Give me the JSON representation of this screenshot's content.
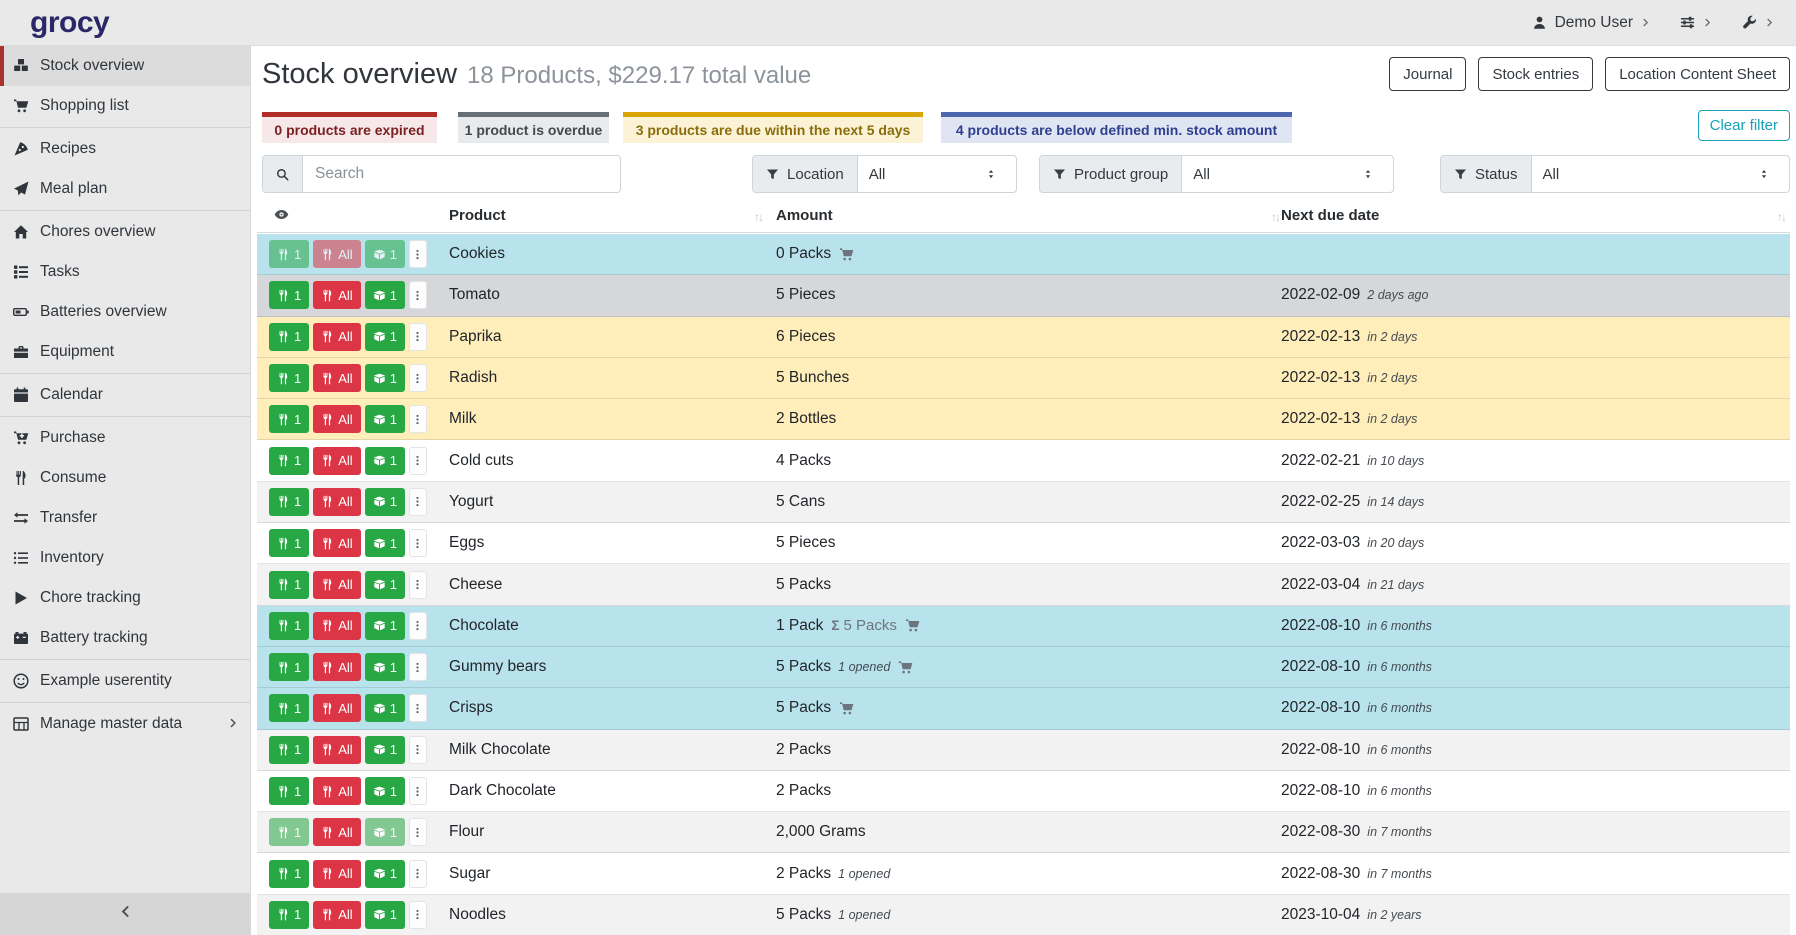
{
  "navbar": {
    "logo": "grocy",
    "user_label": "Demo User"
  },
  "sidebar": {
    "groups": [
      [
        {
          "label": "Stock overview",
          "icon": "boxes",
          "active": true
        },
        {
          "label": "Shopping list",
          "icon": "shopping-cart"
        }
      ],
      [
        {
          "label": "Recipes",
          "icon": "pizza-slice"
        },
        {
          "label": "Meal plan",
          "icon": "paper-plane"
        }
      ],
      [
        {
          "label": "Chores overview",
          "icon": "home"
        },
        {
          "label": "Tasks",
          "icon": "tasks"
        },
        {
          "label": "Batteries overview",
          "icon": "battery"
        },
        {
          "label": "Equipment",
          "icon": "toolbox"
        }
      ],
      [
        {
          "label": "Calendar",
          "icon": "calendar"
        }
      ],
      [
        {
          "label": "Purchase",
          "icon": "cart-plus"
        },
        {
          "label": "Consume",
          "icon": "utensils"
        },
        {
          "label": "Transfer",
          "icon": "exchange"
        },
        {
          "label": "Inventory",
          "icon": "list"
        },
        {
          "label": "Chore tracking",
          "icon": "play"
        },
        {
          "label": "Battery tracking",
          "icon": "car-battery"
        }
      ],
      [
        {
          "label": "Example userentity",
          "icon": "smiley"
        }
      ],
      [
        {
          "label": "Manage master data",
          "icon": "table",
          "chevron": true
        }
      ]
    ]
  },
  "header": {
    "title": "Stock overview",
    "subtitle": "18 Products, $229.17 total value",
    "buttons": [
      "Journal",
      "Stock entries",
      "Location Content Sheet"
    ]
  },
  "status_cards": [
    {
      "text": "0 products are expired",
      "kind": "expired"
    },
    {
      "text": "1 product is overdue",
      "kind": "overdue"
    },
    {
      "text": "3 products are due within the next 5 days",
      "kind": "due-soon"
    },
    {
      "text": "4 products are below defined min. stock amount",
      "kind": "below-min"
    }
  ],
  "filters": {
    "clear_label": "Clear filter",
    "search_placeholder": "Search",
    "selects": [
      {
        "label": "Location",
        "value": "All"
      },
      {
        "label": "Product group",
        "value": "All"
      },
      {
        "label": "Status",
        "value": "All"
      }
    ]
  },
  "row_buttons": {
    "consume_one": "1",
    "consume_all": "All",
    "open_one": "1"
  },
  "table": {
    "columns": [
      "Product",
      "Amount",
      "Next due date"
    ],
    "rows": [
      {
        "product": "Cookies",
        "amount": "0 Packs",
        "cart": true,
        "date": "",
        "relative": "",
        "style": "info",
        "faded": "all"
      },
      {
        "product": "Tomato",
        "amount": "5 Pieces",
        "cart": false,
        "date": "2022-02-09",
        "relative": "2 days ago",
        "style": "secondary",
        "faded": null
      },
      {
        "product": "Paprika",
        "amount": "6 Pieces",
        "cart": false,
        "date": "2022-02-13",
        "relative": "in 2 days",
        "style": "warning",
        "faded": null
      },
      {
        "product": "Radish",
        "amount": "5 Bunches",
        "cart": false,
        "date": "2022-02-13",
        "relative": "in 2 days",
        "style": "warning",
        "faded": null
      },
      {
        "product": "Milk",
        "amount": "2 Bottles",
        "cart": false,
        "date": "2022-02-13",
        "relative": "in 2 days",
        "style": "warning",
        "faded": null
      },
      {
        "product": "Cold cuts",
        "amount": "4 Packs",
        "cart": false,
        "date": "2022-02-21",
        "relative": "in 10 days",
        "style": "plain",
        "faded": null
      },
      {
        "product": "Yogurt",
        "amount": "5 Cans",
        "cart": false,
        "date": "2022-02-25",
        "relative": "in 14 days",
        "style": "stripe",
        "faded": null
      },
      {
        "product": "Eggs",
        "amount": "5 Pieces",
        "cart": false,
        "date": "2022-03-03",
        "relative": "in 20 days",
        "style": "plain",
        "faded": null
      },
      {
        "product": "Cheese",
        "amount": "5 Packs",
        "cart": false,
        "date": "2022-03-04",
        "relative": "in 21 days",
        "style": "stripe",
        "faded": null
      },
      {
        "product": "Chocolate",
        "amount": "1 Pack",
        "sum": "5 Packs",
        "cart": true,
        "date": "2022-08-10",
        "relative": "in 6 months",
        "style": "info",
        "faded": null
      },
      {
        "product": "Gummy bears",
        "amount": "5 Packs",
        "note": "1 opened",
        "cart": true,
        "date": "2022-08-10",
        "relative": "in 6 months",
        "style": "info",
        "faded": null
      },
      {
        "product": "Crisps",
        "amount": "5 Packs",
        "cart": true,
        "date": "2022-08-10",
        "relative": "in 6 months",
        "style": "info",
        "faded": null
      },
      {
        "product": "Milk Chocolate",
        "amount": "2 Packs",
        "cart": false,
        "date": "2022-08-10",
        "relative": "in 6 months",
        "style": "stripe",
        "faded": null
      },
      {
        "product": "Dark Chocolate",
        "amount": "2 Packs",
        "cart": false,
        "date": "2022-08-10",
        "relative": "in 6 months",
        "style": "plain",
        "faded": null
      },
      {
        "product": "Flour",
        "amount": "2,000 Grams",
        "cart": false,
        "date": "2022-08-30",
        "relative": "in 7 months",
        "style": "stripe",
        "faded": "ones"
      },
      {
        "product": "Sugar",
        "amount": "2 Packs",
        "note": "1 opened",
        "cart": false,
        "date": "2022-08-30",
        "relative": "in 7 months",
        "style": "plain",
        "faded": null
      },
      {
        "product": "Noodles",
        "amount": "5 Packs",
        "note": "1 opened",
        "cart": false,
        "date": "2023-10-04",
        "relative": "in 2 years",
        "style": "stripe",
        "faded": null
      }
    ]
  },
  "colors": {
    "logo": "#2b2768",
    "sidebar_active_border": "#a8322d",
    "success_button": "#28a745",
    "danger_button": "#dc3545",
    "info_row": "#b8e3ec",
    "secondary_row": "#d5d7da",
    "warning_row": "#ffeeba",
    "stripe_row": "#f2f2f2",
    "clear_filter_teal": "#17a2b8",
    "card_expired": "#b02d28",
    "card_overdue": "#686f76",
    "card_due_soon": "#d9a406",
    "card_below_min": "#4d68af"
  }
}
